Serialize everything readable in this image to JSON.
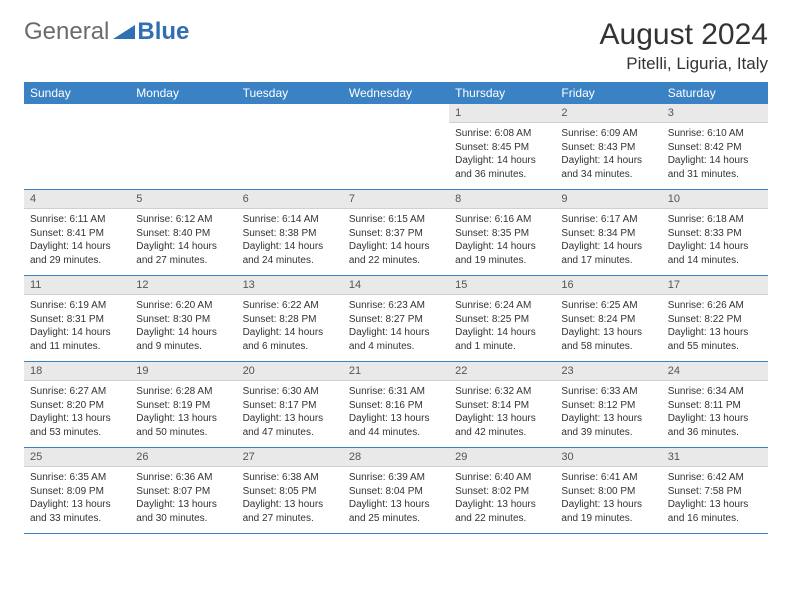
{
  "brand": {
    "general": "General",
    "blue": "Blue"
  },
  "title": "August 2024",
  "location": "Pitelli, Liguria, Italy",
  "colors": {
    "header_bg": "#3b82c4",
    "header_text": "#ffffff",
    "daynum_bg": "#e9e9e9",
    "divider": "#3b82c4",
    "logo_gray": "#6b6b6b",
    "logo_blue": "#2f6fb4"
  },
  "day_names": [
    "Sunday",
    "Monday",
    "Tuesday",
    "Wednesday",
    "Thursday",
    "Friday",
    "Saturday"
  ],
  "weeks": [
    {
      "nums": [
        "",
        "",
        "",
        "",
        "1",
        "2",
        "3"
      ],
      "cells": [
        null,
        null,
        null,
        null,
        {
          "sunrise": "6:08 AM",
          "sunset": "8:45 PM",
          "daylight": "14 hours and 36 minutes."
        },
        {
          "sunrise": "6:09 AM",
          "sunset": "8:43 PM",
          "daylight": "14 hours and 34 minutes."
        },
        {
          "sunrise": "6:10 AM",
          "sunset": "8:42 PM",
          "daylight": "14 hours and 31 minutes."
        }
      ]
    },
    {
      "nums": [
        "4",
        "5",
        "6",
        "7",
        "8",
        "9",
        "10"
      ],
      "cells": [
        {
          "sunrise": "6:11 AM",
          "sunset": "8:41 PM",
          "daylight": "14 hours and 29 minutes."
        },
        {
          "sunrise": "6:12 AM",
          "sunset": "8:40 PM",
          "daylight": "14 hours and 27 minutes."
        },
        {
          "sunrise": "6:14 AM",
          "sunset": "8:38 PM",
          "daylight": "14 hours and 24 minutes."
        },
        {
          "sunrise": "6:15 AM",
          "sunset": "8:37 PM",
          "daylight": "14 hours and 22 minutes."
        },
        {
          "sunrise": "6:16 AM",
          "sunset": "8:35 PM",
          "daylight": "14 hours and 19 minutes."
        },
        {
          "sunrise": "6:17 AM",
          "sunset": "8:34 PM",
          "daylight": "14 hours and 17 minutes."
        },
        {
          "sunrise": "6:18 AM",
          "sunset": "8:33 PM",
          "daylight": "14 hours and 14 minutes."
        }
      ]
    },
    {
      "nums": [
        "11",
        "12",
        "13",
        "14",
        "15",
        "16",
        "17"
      ],
      "cells": [
        {
          "sunrise": "6:19 AM",
          "sunset": "8:31 PM",
          "daylight": "14 hours and 11 minutes."
        },
        {
          "sunrise": "6:20 AM",
          "sunset": "8:30 PM",
          "daylight": "14 hours and 9 minutes."
        },
        {
          "sunrise": "6:22 AM",
          "sunset": "8:28 PM",
          "daylight": "14 hours and 6 minutes."
        },
        {
          "sunrise": "6:23 AM",
          "sunset": "8:27 PM",
          "daylight": "14 hours and 4 minutes."
        },
        {
          "sunrise": "6:24 AM",
          "sunset": "8:25 PM",
          "daylight": "14 hours and 1 minute."
        },
        {
          "sunrise": "6:25 AM",
          "sunset": "8:24 PM",
          "daylight": "13 hours and 58 minutes."
        },
        {
          "sunrise": "6:26 AM",
          "sunset": "8:22 PM",
          "daylight": "13 hours and 55 minutes."
        }
      ]
    },
    {
      "nums": [
        "18",
        "19",
        "20",
        "21",
        "22",
        "23",
        "24"
      ],
      "cells": [
        {
          "sunrise": "6:27 AM",
          "sunset": "8:20 PM",
          "daylight": "13 hours and 53 minutes."
        },
        {
          "sunrise": "6:28 AM",
          "sunset": "8:19 PM",
          "daylight": "13 hours and 50 minutes."
        },
        {
          "sunrise": "6:30 AM",
          "sunset": "8:17 PM",
          "daylight": "13 hours and 47 minutes."
        },
        {
          "sunrise": "6:31 AM",
          "sunset": "8:16 PM",
          "daylight": "13 hours and 44 minutes."
        },
        {
          "sunrise": "6:32 AM",
          "sunset": "8:14 PM",
          "daylight": "13 hours and 42 minutes."
        },
        {
          "sunrise": "6:33 AM",
          "sunset": "8:12 PM",
          "daylight": "13 hours and 39 minutes."
        },
        {
          "sunrise": "6:34 AM",
          "sunset": "8:11 PM",
          "daylight": "13 hours and 36 minutes."
        }
      ]
    },
    {
      "nums": [
        "25",
        "26",
        "27",
        "28",
        "29",
        "30",
        "31"
      ],
      "cells": [
        {
          "sunrise": "6:35 AM",
          "sunset": "8:09 PM",
          "daylight": "13 hours and 33 minutes."
        },
        {
          "sunrise": "6:36 AM",
          "sunset": "8:07 PM",
          "daylight": "13 hours and 30 minutes."
        },
        {
          "sunrise": "6:38 AM",
          "sunset": "8:05 PM",
          "daylight": "13 hours and 27 minutes."
        },
        {
          "sunrise": "6:39 AM",
          "sunset": "8:04 PM",
          "daylight": "13 hours and 25 minutes."
        },
        {
          "sunrise": "6:40 AM",
          "sunset": "8:02 PM",
          "daylight": "13 hours and 22 minutes."
        },
        {
          "sunrise": "6:41 AM",
          "sunset": "8:00 PM",
          "daylight": "13 hours and 19 minutes."
        },
        {
          "sunrise": "6:42 AM",
          "sunset": "7:58 PM",
          "daylight": "13 hours and 16 minutes."
        }
      ]
    }
  ]
}
